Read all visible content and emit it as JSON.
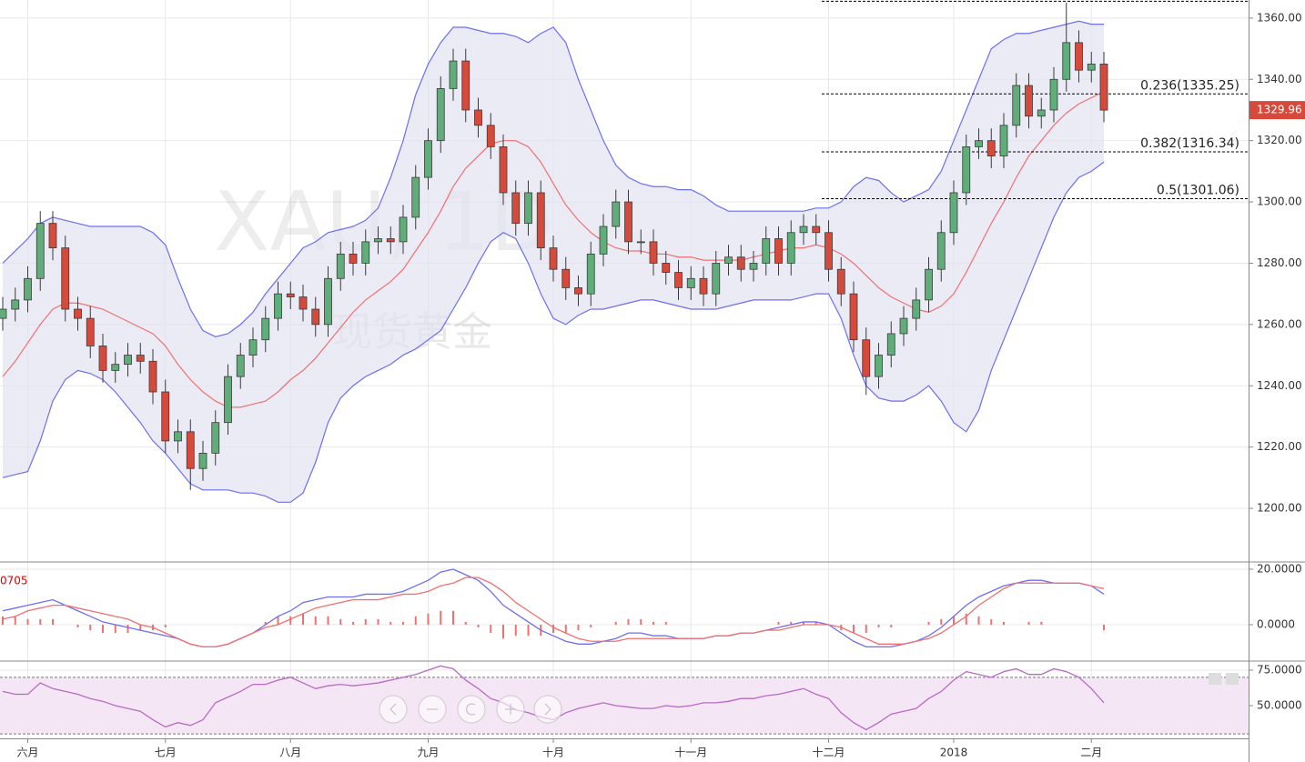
{
  "chart_data": [
    {
      "type": "candlestick",
      "watermark": "XAU, 1D",
      "watermark_sub": "现货黄金",
      "categories": [
        null,
        null,
        "六月",
        null,
        null,
        null,
        null,
        null,
        null,
        null,
        null,
        null,
        null,
        "七月",
        null,
        null,
        null,
        null,
        null,
        null,
        null,
        null,
        null,
        "八月",
        null,
        null,
        null,
        null,
        null,
        null,
        null,
        null,
        null,
        null,
        "九月",
        null,
        null,
        null,
        null,
        null,
        null,
        null,
        null,
        null,
        "十月",
        null,
        null,
        null,
        null,
        null,
        null,
        null,
        null,
        null,
        null,
        "十一月",
        null,
        null,
        null,
        null,
        null,
        null,
        null,
        null,
        null,
        null,
        "十二月",
        null,
        null,
        null,
        null,
        null,
        null,
        null,
        null,
        null,
        "2018",
        null,
        null,
        null,
        null,
        null,
        null,
        null,
        null,
        null,
        null,
        "二月",
        null
      ],
      "open": [
        1262,
        1265,
        1268,
        1275,
        1293,
        1285,
        1265,
        1262,
        1253,
        1245,
        1247,
        1250,
        1248,
        1238,
        1222,
        1225,
        1213,
        1218,
        1228,
        1243,
        1250,
        1255,
        1262,
        1270,
        1269,
        1265,
        1260,
        1275,
        1283,
        1280,
        1287,
        1288,
        1287,
        1295,
        1308,
        1320,
        1337,
        1346,
        1330,
        1325,
        1318,
        1303,
        1293,
        1303,
        1285,
        1278,
        1272,
        1270,
        1283,
        1292,
        1300,
        1287,
        1287,
        1280,
        1277,
        1272,
        1275,
        1270,
        1280,
        1282,
        1278,
        1280,
        1288,
        1280,
        1290,
        1292,
        1290,
        1278,
        1270,
        1255,
        1243,
        1250,
        1257,
        1262,
        1268,
        1278,
        1290,
        1303,
        1318,
        1320,
        1315,
        1325,
        1338,
        1328,
        1330,
        1340,
        1352,
        1343,
        1345
      ],
      "high": [
        1269,
        1272,
        1279,
        1297,
        1297,
        1289,
        1269,
        1266,
        1257,
        1251,
        1254,
        1254,
        1252,
        1242,
        1229,
        1229,
        1222,
        1232,
        1247,
        1254,
        1259,
        1266,
        1274,
        1274,
        1273,
        1269,
        1279,
        1287,
        1287,
        1291,
        1292,
        1292,
        1299,
        1312,
        1324,
        1341,
        1350,
        1350,
        1334,
        1329,
        1322,
        1307,
        1307,
        1307,
        1289,
        1282,
        1276,
        1287,
        1296,
        1304,
        1304,
        1291,
        1291,
        1284,
        1281,
        1279,
        1279,
        1284,
        1286,
        1286,
        1284,
        1292,
        1292,
        1294,
        1296,
        1296,
        1294,
        1282,
        1274,
        1259,
        1254,
        1261,
        1266,
        1272,
        1282,
        1294,
        1307,
        1322,
        1324,
        1324,
        1329,
        1342,
        1342,
        1334,
        1344,
        1365,
        1356,
        1349,
        1349
      ],
      "low": [
        1258,
        1261,
        1264,
        1271,
        1281,
        1261,
        1258,
        1249,
        1241,
        1241,
        1243,
        1244,
        1234,
        1218,
        1218,
        1206,
        1209,
        1214,
        1224,
        1239,
        1246,
        1251,
        1258,
        1265,
        1261,
        1256,
        1256,
        1271,
        1276,
        1276,
        1283,
        1283,
        1283,
        1291,
        1304,
        1316,
        1333,
        1326,
        1321,
        1314,
        1299,
        1289,
        1289,
        1281,
        1274,
        1268,
        1266,
        1266,
        1279,
        1288,
        1283,
        1283,
        1276,
        1273,
        1268,
        1268,
        1266,
        1266,
        1276,
        1274,
        1274,
        1276,
        1276,
        1276,
        1286,
        1286,
        1274,
        1266,
        1251,
        1237,
        1239,
        1246,
        1253,
        1258,
        1264,
        1274,
        1286,
        1299,
        1314,
        1311,
        1311,
        1321,
        1324,
        1324,
        1326,
        1336,
        1339,
        1339,
        1326
      ],
      "close": [
        1265,
        1268,
        1275,
        1293,
        1285,
        1265,
        1262,
        1253,
        1245,
        1247,
        1250,
        1248,
        1238,
        1222,
        1225,
        1213,
        1218,
        1228,
        1243,
        1250,
        1255,
        1262,
        1270,
        1269,
        1265,
        1260,
        1275,
        1283,
        1280,
        1287,
        1288,
        1287,
        1295,
        1308,
        1320,
        1337,
        1346,
        1330,
        1325,
        1318,
        1303,
        1293,
        1303,
        1285,
        1278,
        1272,
        1270,
        1283,
        1292,
        1300,
        1287,
        1287,
        1280,
        1277,
        1272,
        1275,
        1270,
        1280,
        1282,
        1278,
        1280,
        1288,
        1280,
        1290,
        1292,
        1290,
        1278,
        1270,
        1255,
        1243,
        1250,
        1257,
        1262,
        1268,
        1278,
        1290,
        1303,
        1318,
        1320,
        1315,
        1325,
        1338,
        1328,
        1330,
        1340,
        1352,
        1343,
        1345,
        1329.96
      ],
      "upper": [
        1280,
        1284,
        1288,
        1293,
        1295,
        1294,
        1293,
        1292,
        1292,
        1292,
        1292,
        1292,
        1290,
        1286,
        1275,
        1265,
        1258,
        1256,
        1257,
        1260,
        1264,
        1270,
        1275,
        1280,
        1285,
        1287,
        1290,
        1291,
        1292,
        1294,
        1298,
        1308,
        1320,
        1335,
        1345,
        1352,
        1357,
        1357,
        1356,
        1355,
        1355,
        1354,
        1352,
        1355,
        1357,
        1352,
        1340,
        1330,
        1320,
        1312,
        1308,
        1306,
        1305,
        1305,
        1304,
        1304,
        1302,
        1299,
        1297,
        1297,
        1297,
        1297,
        1297,
        1297,
        1297,
        1298,
        1298,
        1300,
        1305,
        1308,
        1307,
        1303,
        1300,
        1302,
        1304,
        1310,
        1320,
        1330,
        1340,
        1350,
        1353,
        1355,
        1355,
        1356,
        1357,
        1358,
        1359,
        1358,
        1358
      ],
      "basis": [
        1243,
        1248,
        1254,
        1260,
        1265,
        1267,
        1267,
        1266,
        1265,
        1263,
        1261,
        1259,
        1257,
        1253,
        1247,
        1242,
        1238,
        1235,
        1233,
        1233,
        1234,
        1235,
        1238,
        1242,
        1245,
        1249,
        1254,
        1259,
        1264,
        1268,
        1271,
        1274,
        1278,
        1284,
        1290,
        1297,
        1305,
        1311,
        1315,
        1319,
        1320,
        1320,
        1318,
        1313,
        1306,
        1299,
        1294,
        1290,
        1287,
        1285,
        1284,
        1284,
        1283,
        1283,
        1282,
        1282,
        1281,
        1281,
        1281,
        1281,
        1282,
        1283,
        1284,
        1285,
        1285,
        1286,
        1285,
        1283,
        1280,
        1276,
        1272,
        1269,
        1267,
        1265,
        1264,
        1266,
        1270,
        1277,
        1285,
        1293,
        1300,
        1308,
        1315,
        1320,
        1325,
        1329,
        1332,
        1334,
        1336
      ],
      "lower": [
        1210,
        1211,
        1212,
        1222,
        1235,
        1242,
        1245,
        1244,
        1242,
        1238,
        1233,
        1228,
        1222,
        1218,
        1213,
        1208,
        1206,
        1206,
        1206,
        1205,
        1205,
        1204,
        1202,
        1202,
        1205,
        1215,
        1228,
        1236,
        1240,
        1243,
        1245,
        1247,
        1250,
        1252,
        1255,
        1258,
        1265,
        1272,
        1280,
        1287,
        1290,
        1288,
        1280,
        1270,
        1262,
        1260,
        1263,
        1265,
        1265,
        1266,
        1267,
        1268,
        1268,
        1267,
        1266,
        1265,
        1265,
        1265,
        1266,
        1267,
        1268,
        1268,
        1268,
        1268,
        1269,
        1270,
        1270,
        1262,
        1250,
        1240,
        1236,
        1235,
        1235,
        1237,
        1240,
        1235,
        1228,
        1225,
        1232,
        1245,
        1255,
        1265,
        1275,
        1285,
        1295,
        1303,
        1308,
        1310,
        1313
      ],
      "fib_top": 1365.5,
      "fib_levels": [
        {
          "value": 1335.25,
          "label": "0.236(1335.25)"
        },
        {
          "value": 1316.34,
          "label": "0.382(1316.34)"
        },
        {
          "value": 1301.06,
          "label": "0.5(1301.06)"
        }
      ],
      "ylim": [
        1182.8,
        1365.9
      ],
      "yticks": [
        {
          "value": 1200,
          "label": "1200.00"
        },
        {
          "value": 1220,
          "label": "1220.00"
        },
        {
          "value": 1240,
          "label": "1240.00"
        },
        {
          "value": 1260,
          "label": "1260.00"
        },
        {
          "value": 1280,
          "label": "1280.00"
        },
        {
          "value": 1300,
          "label": "1300.00"
        },
        {
          "value": 1320,
          "label": "1320.00"
        },
        {
          "value": 1340,
          "label": "1340.00"
        },
        {
          "value": 1360,
          "label": "1360.00"
        }
      ],
      "grid": true,
      "up_color": "#5fae7a",
      "down_color": "#d64a3c",
      "band_color": "#6e6ef0",
      "band_fill": "#e3e3f2",
      "basis_color": "#f07070",
      "last_color": "#d64a3c"
    },
    {
      "type": "macd",
      "annotation": "0705",
      "macd": [
        5,
        6,
        7,
        8,
        9,
        7,
        5,
        3,
        1,
        0,
        -1,
        -2,
        -3,
        -4,
        -5,
        -7,
        -8,
        -8,
        -7,
        -5,
        -3,
        0,
        3,
        5,
        8,
        9,
        10,
        10,
        10,
        11,
        11,
        11,
        12,
        14,
        16,
        19,
        20,
        18,
        16,
        12,
        7,
        4,
        1,
        -2,
        -4,
        -6,
        -7,
        -7,
        -6,
        -5,
        -3,
        -3,
        -4,
        -4,
        -5,
        -5,
        -5,
        -4,
        -4,
        -3,
        -3,
        -2,
        -1,
        0,
        1,
        1,
        0,
        -3,
        -6,
        -8,
        -8,
        -8,
        -7,
        -6,
        -4,
        -1,
        3,
        7,
        10,
        12,
        14,
        15,
        16,
        16,
        15,
        15,
        15,
        14,
        11
      ],
      "signal": [
        2,
        3,
        5,
        6,
        7,
        7,
        6,
        5,
        4,
        3,
        2,
        0,
        -1,
        -3,
        -5,
        -7,
        -8,
        -8,
        -7,
        -5,
        -3,
        -1,
        0,
        2,
        4,
        6,
        7,
        8,
        9,
        9,
        9,
        10,
        11,
        11,
        12,
        14,
        15,
        17,
        17,
        15,
        12,
        8,
        5,
        2,
        -1,
        -3,
        -5,
        -6,
        -6,
        -6,
        -5,
        -5,
        -5,
        -5,
        -5,
        -5,
        -5,
        -4,
        -4,
        -3,
        -3,
        -2,
        -2,
        -1,
        0,
        0,
        0,
        -1,
        -3,
        -5,
        -7,
        -7,
        -7,
        -6,
        -5,
        -3,
        0,
        3,
        7,
        10,
        13,
        15,
        15,
        15,
        15,
        15,
        15,
        14,
        13
      ],
      "histogram": [
        3,
        3,
        2,
        2,
        2,
        0,
        -1,
        -2,
        -3,
        -3,
        -3,
        -2,
        -2,
        -1,
        0,
        0,
        0,
        0,
        0,
        0,
        0,
        1,
        3,
        3,
        4,
        3,
        3,
        2,
        1,
        2,
        2,
        1,
        1,
        3,
        4,
        5,
        5,
        1,
        -1,
        -3,
        -5,
        -4,
        -4,
        -4,
        -3,
        -3,
        -2,
        -1,
        0,
        1,
        2,
        2,
        1,
        1,
        0,
        0,
        0,
        0,
        0,
        0,
        0,
        0,
        1,
        1,
        1,
        1,
        0,
        -2,
        -3,
        -3,
        -1,
        -1,
        0,
        0,
        1,
        2,
        3,
        4,
        3,
        2,
        1,
        0,
        1,
        1,
        0,
        0,
        0,
        0,
        -2
      ],
      "ylim": [
        -12.8,
        22.3
      ],
      "yticks": [
        {
          "value": 0,
          "label": "0.0000"
        },
        {
          "value": 20,
          "label": "20.0000"
        }
      ],
      "grid": true,
      "macd_color": "#6e6ef0",
      "signal_color": "#f07070",
      "histogram_color": "#f07070",
      "annotation_color": "#e00000"
    },
    {
      "type": "rsi",
      "values": [
        60,
        58,
        58,
        66,
        62,
        60,
        58,
        55,
        53,
        50,
        48,
        46,
        40,
        35,
        38,
        36,
        40,
        52,
        56,
        60,
        65,
        65,
        68,
        70,
        66,
        62,
        64,
        65,
        64,
        65,
        66,
        68,
        70,
        72,
        75,
        78,
        76,
        68,
        62,
        55,
        52,
        47,
        45,
        42,
        40,
        45,
        48,
        50,
        52,
        50,
        49,
        48,
        48,
        50,
        49,
        50,
        52,
        52,
        53,
        55,
        55,
        57,
        58,
        60,
        62,
        58,
        55,
        45,
        38,
        33,
        38,
        44,
        46,
        48,
        55,
        60,
        68,
        74,
        72,
        70,
        74,
        76,
        72,
        72,
        76,
        74,
        70,
        62,
        52
      ],
      "band": [
        30,
        70
      ],
      "ylim": [
        26.9,
        80.8
      ],
      "yticks": [
        {
          "value": 50,
          "label": "50.0000"
        },
        {
          "value": 75,
          "label": "75.0000"
        }
      ],
      "grid": true,
      "color": "#b86bc4",
      "band_fill": "#f4e6f4"
    }
  ]
}
